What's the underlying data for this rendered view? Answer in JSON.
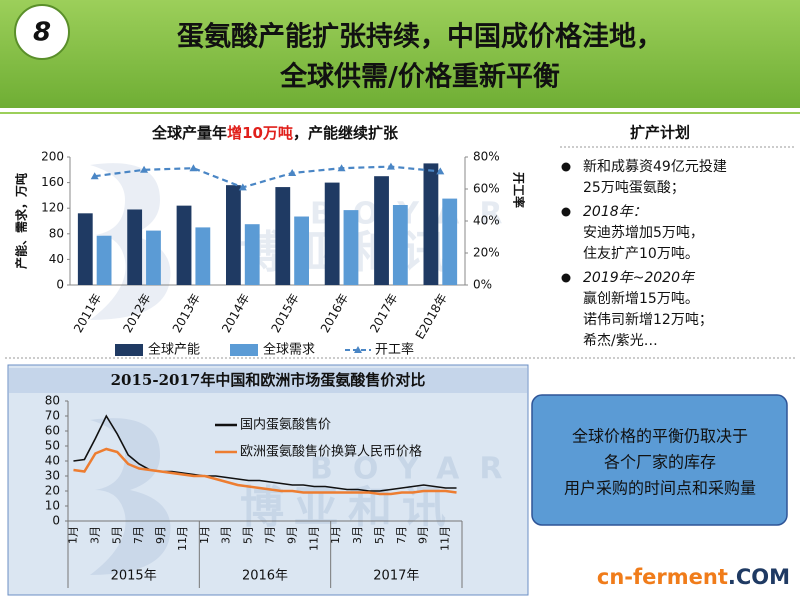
{
  "header": {
    "number": "8",
    "title_lines": [
      "蛋氨酸产能扩张持续，中国成价格洼地，",
      "全球供需/价格重新平衡"
    ]
  },
  "chart_data": [
    {
      "type": "bar",
      "title": [
        "全球产量年",
        "增10万吨",
        "，产能继续扩张"
      ],
      "title_highlight": 1,
      "title_highlight_color": "#e0201b",
      "y_label": "产能、需求，万吨",
      "y2_label": "开工率",
      "categories": [
        "2011年",
        "2012年",
        "2013年",
        "2014年",
        "2015年",
        "2016年",
        "2017年",
        "E2018年"
      ],
      "series": [
        {
          "name": "全球产能",
          "color": "#1f3a63",
          "values": [
            112,
            118,
            124,
            156,
            153,
            160,
            170,
            190
          ]
        },
        {
          "name": "全球需求",
          "color": "#5b9bd5",
          "values": [
            77,
            85,
            90,
            95,
            107,
            117,
            125,
            135
          ]
        },
        {
          "name": "开工率",
          "color": "#4a86c5",
          "type": "line",
          "axis": "y2",
          "values": [
            68,
            72,
            73,
            61,
            70,
            73,
            74,
            71
          ]
        }
      ],
      "ylim": [
        0,
        200
      ],
      "yticks": [
        0,
        40,
        80,
        120,
        160,
        200
      ],
      "y2lim": [
        0,
        80
      ],
      "y2ticks": [
        {
          "value": 0,
          "label": "0%"
        },
        {
          "value": 20,
          "label": "20%"
        },
        {
          "value": 40,
          "label": "40%"
        },
        {
          "value": 60,
          "label": "60%"
        },
        {
          "value": 80,
          "label": "80%"
        }
      ],
      "legend": "bottom"
    },
    {
      "type": "line",
      "title": "2015-2017年中国和欧洲市场蛋氨酸售价对比",
      "categories": [
        "1月",
        null,
        "3月",
        null,
        "5月",
        null,
        "7月",
        null,
        "9月",
        null,
        "11月",
        null,
        "1月",
        null,
        "3月",
        null,
        "5月",
        null,
        "7月",
        null,
        "9月",
        null,
        "11月",
        null,
        "1月",
        null,
        "3月",
        null,
        "5月",
        null,
        "7月",
        null,
        "9月",
        null,
        "11月",
        null
      ],
      "x_groups": [
        "2015年",
        "2016年",
        "2017年"
      ],
      "series": [
        {
          "name": "国内蛋氨酸售价",
          "color": "#111111",
          "values": [
            40,
            41,
            55,
            70,
            58,
            44,
            38,
            34,
            33,
            33,
            32,
            31,
            30,
            30,
            29,
            28,
            27,
            27,
            26,
            25,
            24,
            24,
            23,
            23,
            22,
            21,
            21,
            20,
            20,
            21,
            22,
            23,
            24,
            23,
            22,
            22
          ]
        },
        {
          "name": "欧洲蛋氨酸售价换算人民币价格",
          "color": "#ed7d31",
          "values": [
            34,
            33,
            45,
            48,
            46,
            38,
            35,
            34,
            33,
            32,
            31,
            30,
            30,
            28,
            26,
            24,
            23,
            22,
            21,
            20,
            20,
            19,
            19,
            19,
            19,
            19,
            19,
            19,
            18,
            18,
            19,
            19,
            20,
            20,
            20,
            19
          ]
        }
      ],
      "ylim": [
        0,
        80
      ],
      "yticks": [
        0,
        10,
        20,
        30,
        40,
        50,
        60,
        70,
        80
      ],
      "legend": "upper-center"
    }
  ],
  "plan": {
    "title": "扩产计划",
    "items": [
      {
        "lines": [
          "新和成募资49亿元投建",
          "25万吨蛋氨酸；"
        ]
      },
      {
        "head": "2018年：",
        "lines": [
          "安迪苏增加5万吨，",
          "住友扩产10万吨。"
        ]
      },
      {
        "head": "2019年~2020年",
        "lines": [
          "赢创新增15万吨。",
          "诺伟司新增12万吨；",
          "希杰/紫光…"
        ]
      }
    ]
  },
  "callout": [
    "全球价格的平衡仍取决于",
    "各个厂家的库存",
    "用户采购的时间点和采购量"
  ],
  "watermark": {
    "latin": "BOYAR",
    "chinese": "博亚和讯"
  },
  "footer": [
    "cn-ferment",
    ".COM"
  ]
}
